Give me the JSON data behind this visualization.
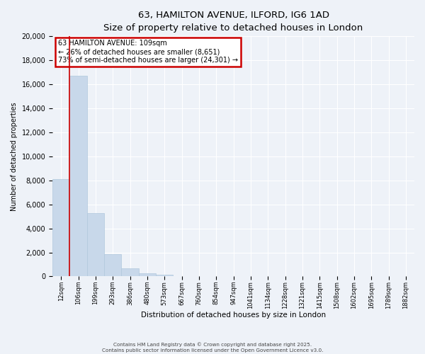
{
  "title": "63, HAMILTON AVENUE, ILFORD, IG6 1AD",
  "subtitle": "Size of property relative to detached houses in London",
  "xlabel": "Distribution of detached houses by size in London",
  "ylabel": "Number of detached properties",
  "bar_labels": [
    "12sqm",
    "106sqm",
    "199sqm",
    "293sqm",
    "386sqm",
    "480sqm",
    "573sqm",
    "667sqm",
    "760sqm",
    "854sqm",
    "947sqm",
    "1041sqm",
    "1134sqm",
    "1228sqm",
    "1321sqm",
    "1415sqm",
    "1508sqm",
    "1602sqm",
    "1695sqm",
    "1789sqm",
    "1882sqm"
  ],
  "bar_values": [
    8100,
    16700,
    5300,
    1850,
    700,
    270,
    130,
    0,
    0,
    0,
    0,
    0,
    0,
    0,
    0,
    0,
    0,
    0,
    0,
    0,
    0
  ],
  "bar_color": "#c8d8ea",
  "bar_edge_color": "#b0c8dc",
  "vline_x": 1.0,
  "vline_color": "#cc0000",
  "annotation_title": "63 HAMILTON AVENUE: 109sqm",
  "annotation_line2": "← 26% of detached houses are smaller (8,651)",
  "annotation_line3": "73% of semi-detached houses are larger (24,301) →",
  "annotation_box_color": "#cc0000",
  "ylim": [
    0,
    20000
  ],
  "yticks": [
    0,
    2000,
    4000,
    6000,
    8000,
    10000,
    12000,
    14000,
    16000,
    18000,
    20000
  ],
  "bg_color": "#eef2f8",
  "grid_color": "#ffffff",
  "footer_line1": "Contains HM Land Registry data © Crown copyright and database right 2025.",
  "footer_line2": "Contains public sector information licensed under the Open Government Licence v3.0."
}
